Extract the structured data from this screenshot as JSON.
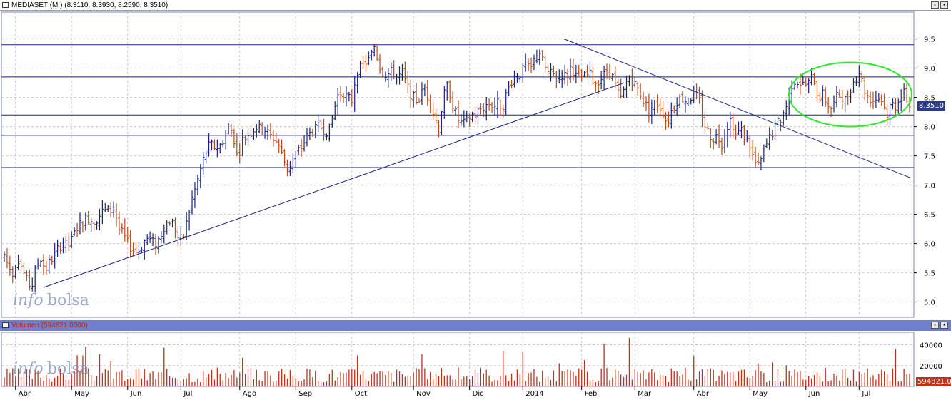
{
  "main_panel": {
    "title": "MEDIASET (M ) (8.3110, 8.3930, 8.2590, 8.3510)",
    "last_price_label": "8.3510",
    "watermark_a": "info",
    "watermark_b": "bolsa"
  },
  "volume_panel": {
    "title": "Volumen (594821.0000)",
    "last_volume_label": "594821.00",
    "watermark_a": "info",
    "watermark_b": "bolsa"
  },
  "colors": {
    "up_bar": "#1a237e",
    "down_bar": "#b84a1a",
    "trendline": "#1a237e",
    "highlight_ellipse": "#2ee82e",
    "volume_bar": "#c0301a",
    "grid": "#c8c8c8",
    "title_bar_volume": "#6f7fd0"
  },
  "chart_data": [
    {
      "type": "ohlc",
      "price_axis": {
        "ylim": [
          4.8,
          9.8
        ],
        "ticks": [
          "5.0",
          "5.5",
          "6.0",
          "6.5",
          "7.0",
          "7.5",
          "8.0",
          "8.5",
          "9.0",
          "9.5"
        ]
      },
      "x_tick_labels": [
        "Abr",
        "May",
        "Jun",
        "Jul",
        "Ago",
        "Sep",
        "Oct",
        "Nov",
        "Dic",
        "2014",
        "Feb",
        "Mar",
        "Abr",
        "May",
        "Jun",
        "Jul"
      ],
      "x_tick_index": [
        4,
        24,
        44,
        63,
        84,
        104,
        124,
        146,
        166,
        185,
        206,
        225,
        246,
        266,
        286,
        305
      ],
      "total_bars": 324,
      "closes": [
        5.8,
        5.6,
        5.5,
        5.75,
        5.55,
        5.35,
        5.25,
        5.6,
        5.75,
        5.55,
        5.7,
        5.8,
        5.95,
        6.0,
        5.95,
        6.1,
        6.3,
        6.35,
        6.45,
        6.4,
        6.4,
        6.5,
        6.6,
        6.55,
        6.6,
        6.25,
        6.15,
        6.0,
        5.9,
        5.85,
        5.95,
        6.1,
        6.05,
        6.0,
        6.1,
        6.3,
        6.4,
        6.35,
        6.1,
        6.05,
        6.4,
        6.75,
        7.0,
        7.3,
        7.55,
        7.7,
        7.65,
        7.65,
        7.8,
        8.0,
        7.9,
        7.45,
        7.75,
        7.85,
        7.9,
        8.0,
        7.95,
        7.95,
        7.85,
        7.8,
        7.7,
        7.45,
        7.3,
        7.4,
        7.55,
        7.65,
        7.8,
        7.9,
        7.95,
        8.0,
        7.95,
        7.9,
        8.25,
        8.55,
        8.6,
        8.5,
        8.45,
        8.95,
        9.0,
        9.1,
        9.15,
        9.4,
        9.05,
        8.9,
        8.9,
        8.95,
        8.85,
        8.9,
        8.7,
        8.55,
        8.45,
        8.5,
        8.7,
        8.4,
        8.2,
        7.95,
        8.5,
        8.7,
        8.4,
        8.15,
        8.05,
        8.05,
        8.2,
        8.2,
        8.3,
        8.35,
        8.4,
        8.35,
        8.4,
        8.35,
        8.6,
        8.8,
        8.9,
        8.9,
        9.05,
        8.95,
        9.15,
        9.3,
        9.05,
        8.9,
        8.9,
        8.8,
        8.9,
        8.85,
        9.05,
        8.85,
        8.85,
        8.85,
        8.9,
        8.75,
        8.8,
        8.85,
        9.0,
        8.85,
        8.6,
        8.45,
        8.75,
        8.9,
        8.7,
        8.6,
        8.4,
        8.3,
        8.35,
        8.4,
        8.25,
        8.05,
        8.3,
        8.45,
        8.5,
        8.45,
        8.5,
        8.55,
        8.45,
        8.05,
        7.9,
        7.8,
        7.85,
        7.7,
        8.0,
        8.15,
        7.85,
        7.95,
        7.85,
        7.7,
        7.4,
        7.3,
        7.55,
        7.75,
        7.9,
        8.05,
        8.15,
        8.35,
        8.7,
        8.8,
        8.75,
        8.7,
        8.75,
        8.85,
        8.5,
        8.55,
        8.4,
        8.3,
        8.5,
        8.55,
        8.45,
        8.65,
        8.8,
        8.95,
        8.65,
        8.5,
        8.45,
        8.5,
        8.45,
        8.2,
        8.4,
        8.35,
        8.6,
        8.55,
        8.35
      ],
      "volume_axis": {
        "ylim": [
          0,
          52000
        ],
        "ticks": [
          "20000",
          "40000"
        ]
      }
    }
  ]
}
